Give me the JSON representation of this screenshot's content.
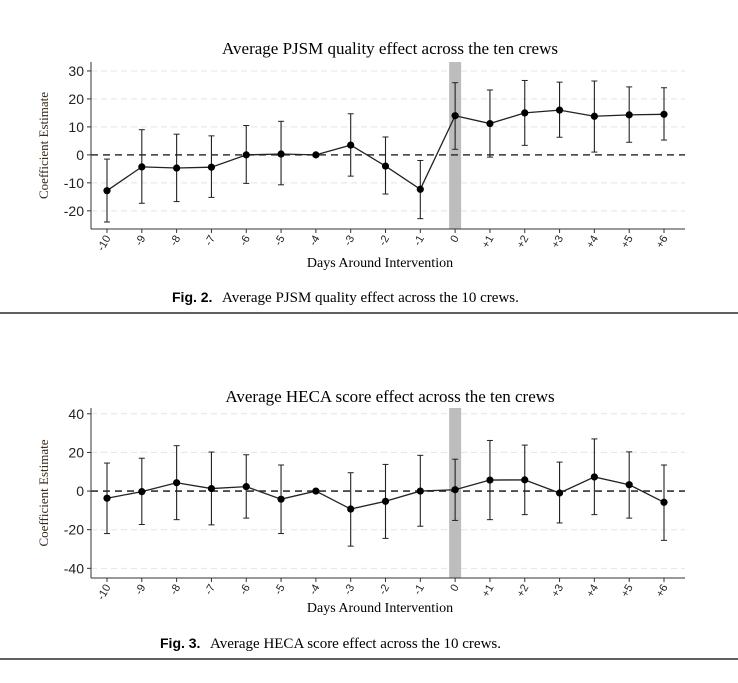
{
  "chart_data": [
    {
      "type": "line",
      "title": "Average PJSM quality effect across the ten crews",
      "xlabel": "Days Around Intervention",
      "ylabel": "Coefficient Estimate",
      "caption_label": "Fig. 2.",
      "caption_text": "Average PJSM quality effect across the 10 crews.",
      "categories": [
        "-10",
        "-9",
        "-8",
        "-7",
        "-6",
        "-5",
        "-4",
        "-3",
        "-2",
        "-1",
        "0",
        "+1",
        "+2",
        "+3",
        "+4",
        "+5",
        "+6"
      ],
      "values": [
        -12.8,
        -4.3,
        -4.7,
        -4.4,
        0,
        0.3,
        0,
        3.5,
        -4,
        -12.3,
        14,
        11.2,
        15,
        16,
        13.8,
        14.3,
        14.5
      ],
      "ci_low": [
        -24,
        -17.3,
        -16.7,
        -15.2,
        -10.2,
        -10.7,
        null,
        -7.6,
        -14,
        -22.8,
        2,
        -0.8,
        3.4,
        6.3,
        1,
        4.5,
        5.3
      ],
      "ci_high": [
        -1.5,
        9,
        7.4,
        6.8,
        10.5,
        12,
        null,
        14.7,
        6.4,
        -2,
        25.8,
        23.2,
        26.6,
        26,
        26.4,
        24.3,
        24
      ],
      "yticks": [
        -20,
        -10,
        0,
        10,
        20,
        30
      ],
      "ylim": [
        -26.5,
        33.2
      ],
      "reference_line": 0,
      "highlight_category": "0",
      "grid": true
    },
    {
      "type": "line",
      "title": "Average HECA score effect across the ten crews",
      "xlabel": "Days Around Intervention",
      "ylabel": "Coefficient Estimate",
      "caption_label": "Fig. 3.",
      "caption_text": "Average HECA score effect across the 10 crews.",
      "categories": [
        "-10",
        "-9",
        "-8",
        "-7",
        "-6",
        "-5",
        "-4",
        "-3",
        "-2",
        "-1",
        "0",
        "+1",
        "+2",
        "+3",
        "+4",
        "+5",
        "+6"
      ],
      "values": [
        -3.7,
        -0.3,
        4.3,
        1.3,
        2.3,
        -4.2,
        0,
        -9.3,
        -5.3,
        0,
        0.7,
        5.7,
        5.8,
        -1,
        7.3,
        3.3,
        -5.8
      ],
      "ci_low": [
        -22,
        -17.3,
        -14.8,
        -17.5,
        -14,
        -22,
        null,
        -28.5,
        -24.5,
        -18.2,
        -15.2,
        -14.8,
        -12.2,
        -16.5,
        -12.2,
        -14,
        -25.5
      ],
      "ci_high": [
        14.5,
        17,
        23.5,
        20.2,
        18.8,
        13.5,
        null,
        9.5,
        13.8,
        18.5,
        16.5,
        26.2,
        23.8,
        15,
        27,
        20.3,
        13.5
      ],
      "yticks": [
        -40,
        -20,
        0,
        20,
        40
      ],
      "ylim": [
        -45,
        43
      ],
      "reference_line": 0,
      "highlight_category": "0",
      "grid": true
    }
  ]
}
